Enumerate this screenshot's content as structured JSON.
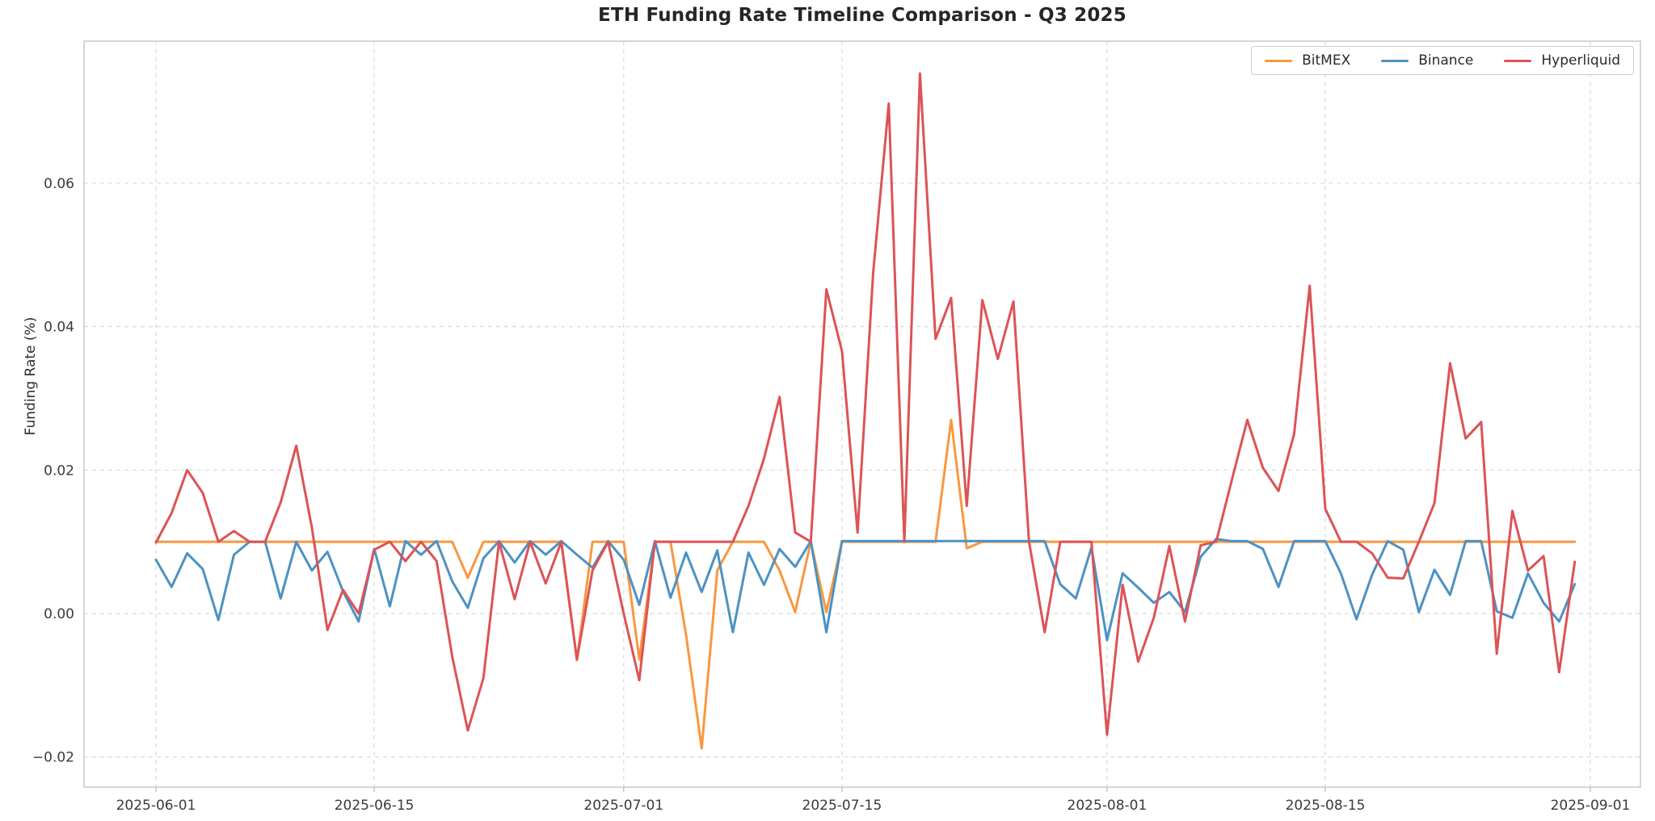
{
  "title": "ETH Funding Rate Timeline Comparison - Q3 2025",
  "axes": {
    "ylabel": "Funding Rate (%)",
    "yticks": [
      {
        "label": "0.06",
        "value": 0.06
      },
      {
        "label": "0.04",
        "value": 0.04
      },
      {
        "label": "0.02",
        "value": 0.02
      },
      {
        "label": "0.00",
        "value": 0.0
      },
      {
        "label": "−0.02",
        "value": -0.02
      }
    ],
    "xticks": [
      {
        "label": "2025-06-01",
        "day": 0
      },
      {
        "label": "2025-06-15",
        "day": 14
      },
      {
        "label": "2025-07-01",
        "day": 30
      },
      {
        "label": "2025-07-15",
        "day": 44
      },
      {
        "label": "2025-08-01",
        "day": 61
      },
      {
        "label": "2025-08-15",
        "day": 75
      },
      {
        "label": "2025-09-01",
        "day": 92
      }
    ],
    "ylim": [
      -0.0242,
      0.0798
    ],
    "x_range_days": 92,
    "grid": "dashed",
    "legend_position": "upper right"
  },
  "legend": {
    "items": [
      {
        "label": "BitMEX",
        "color": "#f9973f"
      },
      {
        "label": "Binance",
        "color": "#4c92c3"
      },
      {
        "label": "Hyperliquid",
        "color": "#dc5356"
      }
    ]
  },
  "chart_data": {
    "type": "line",
    "title": "ETH Funding Rate Timeline Comparison - Q3 2025",
    "xlabel": "",
    "ylabel": "Funding Rate (%)",
    "x_start_date": "2025-06-01",
    "x_dates": [
      "2025-06-01",
      "2025-06-02",
      "2025-06-03",
      "2025-06-04",
      "2025-06-05",
      "2025-06-06",
      "2025-06-07",
      "2025-06-08",
      "2025-06-09",
      "2025-06-10",
      "2025-06-11",
      "2025-06-12",
      "2025-06-13",
      "2025-06-14",
      "2025-06-15",
      "2025-06-16",
      "2025-06-17",
      "2025-06-18",
      "2025-06-19",
      "2025-06-20",
      "2025-06-21",
      "2025-06-22",
      "2025-06-23",
      "2025-06-24",
      "2025-06-25",
      "2025-06-26",
      "2025-06-27",
      "2025-06-28",
      "2025-06-29",
      "2025-06-30",
      "2025-07-01",
      "2025-07-02",
      "2025-07-03",
      "2025-07-04",
      "2025-07-05",
      "2025-07-06",
      "2025-07-07",
      "2025-07-08",
      "2025-07-09",
      "2025-07-10",
      "2025-07-11",
      "2025-07-12",
      "2025-07-13",
      "2025-07-14",
      "2025-07-15",
      "2025-07-16",
      "2025-07-17",
      "2025-07-18",
      "2025-07-19",
      "2025-07-20",
      "2025-07-21",
      "2025-07-22",
      "2025-07-23",
      "2025-07-24",
      "2025-07-25",
      "2025-07-26",
      "2025-07-27",
      "2025-07-28",
      "2025-07-29",
      "2025-07-30",
      "2025-07-31",
      "2025-08-01",
      "2025-08-02",
      "2025-08-03",
      "2025-08-04",
      "2025-08-05",
      "2025-08-06",
      "2025-08-07",
      "2025-08-08",
      "2025-08-09",
      "2025-08-10",
      "2025-08-11",
      "2025-08-12",
      "2025-08-13",
      "2025-08-14",
      "2025-08-15",
      "2025-08-16",
      "2025-08-17",
      "2025-08-18",
      "2025-08-19",
      "2025-08-20",
      "2025-08-21",
      "2025-08-22",
      "2025-08-23",
      "2025-08-24",
      "2025-08-25",
      "2025-08-26",
      "2025-08-27",
      "2025-08-28",
      "2025-08-29",
      "2025-08-30",
      "2025-08-31"
    ],
    "series": [
      {
        "name": "BitMEX",
        "color": "#f9973f",
        "values": [
          0.01,
          0.01,
          0.01,
          0.01,
          0.01,
          0.01,
          0.01,
          0.01,
          0.01,
          0.01,
          0.01,
          0.01,
          0.01,
          0.01,
          0.01,
          0.01,
          0.01,
          0.01,
          0.01,
          0.01,
          0.005,
          0.01,
          0.01,
          0.01,
          0.01,
          0.01,
          0.01,
          -0.0065,
          0.01,
          0.01,
          0.01,
          -0.0064,
          0.01,
          0.01,
          -0.003,
          -0.0188,
          0.006,
          0.01,
          0.01,
          0.01,
          0.006,
          0.0002,
          0.01,
          0.0002,
          0.01,
          0.01,
          0.01,
          0.01,
          0.01,
          0.01,
          0.01,
          0.027,
          0.0091,
          0.01,
          0.01,
          0.01,
          0.01,
          0.01,
          0.01,
          0.01,
          0.01,
          0.01,
          0.01,
          0.01,
          0.01,
          0.01,
          0.01,
          0.01,
          0.01,
          0.01,
          0.01,
          0.01,
          0.01,
          0.01,
          0.01,
          0.01,
          0.01,
          0.01,
          0.01,
          0.01,
          0.01,
          0.01,
          0.01,
          0.01,
          0.01,
          0.01,
          0.01,
          0.01,
          0.01,
          0.01,
          0.01,
          0.01
        ]
      },
      {
        "name": "Binance",
        "color": "#4c92c3",
        "values": [
          0.0075,
          0.0037,
          0.0084,
          0.0062,
          -0.0009,
          0.0082,
          0.01,
          0.01,
          0.0021,
          0.01,
          0.006,
          0.0086,
          0.0031,
          -0.0011,
          0.009,
          0.001,
          0.0101,
          0.0082,
          0.0101,
          0.0045,
          0.0008,
          0.0077,
          0.0101,
          0.0071,
          0.0101,
          0.0082,
          0.0101,
          0.0082,
          0.0064,
          0.0101,
          0.0075,
          0.0012,
          0.0101,
          0.0022,
          0.0085,
          0.003,
          0.0088,
          -0.0026,
          0.0085,
          0.004,
          0.009,
          0.0065,
          0.0101,
          -0.0026,
          0.0101,
          0.0101,
          0.0101,
          0.0101,
          0.0101,
          0.0101,
          0.0101,
          0.0101,
          0.0101,
          0.0101,
          0.0101,
          0.0101,
          0.0101,
          0.0101,
          0.0041,
          0.0021,
          0.0092,
          -0.0037,
          0.0056,
          0.0036,
          0.0015,
          0.003,
          0.0002,
          0.0079,
          0.0104,
          0.0101,
          0.0101,
          0.009,
          0.0037,
          0.0101,
          0.0101,
          0.0101,
          0.0056,
          -0.0008,
          0.0054,
          0.0101,
          0.0089,
          0.0002,
          0.0061,
          0.0026,
          0.0101,
          0.0101,
          0.0003,
          -0.0006,
          0.0056,
          0.0015,
          -0.0011,
          0.0041
        ]
      },
      {
        "name": "Hyperliquid",
        "color": "#dc5356",
        "values": [
          0.0099,
          0.014,
          0.02,
          0.0168,
          0.01,
          0.0115,
          0.01,
          0.01,
          0.0155,
          0.0234,
          0.012,
          -0.0023,
          0.0033,
          0.0,
          0.0089,
          0.01,
          0.0073,
          0.01,
          0.0073,
          -0.006,
          -0.0163,
          -0.009,
          0.01,
          0.002,
          0.01,
          0.0042,
          0.01,
          -0.0064,
          0.006,
          0.01,
          0.0,
          -0.0093,
          0.01,
          0.01,
          0.01,
          0.01,
          0.01,
          0.01,
          0.015,
          0.0216,
          0.0302,
          0.0113,
          0.01,
          0.0452,
          0.0366,
          0.0113,
          0.0475,
          0.0711,
          0.01,
          0.0753,
          0.0383,
          0.044,
          0.015,
          0.0437,
          0.0355,
          0.0435,
          0.01,
          -0.0026,
          0.01,
          0.01,
          0.01,
          -0.0169,
          0.004,
          -0.0067,
          -0.0006,
          0.0094,
          -0.0011,
          0.0095,
          0.01,
          0.0186,
          0.027,
          0.0203,
          0.0171,
          0.025,
          0.0457,
          0.0146,
          0.01,
          0.01,
          0.0084,
          0.005,
          0.0049,
          0.01,
          0.0154,
          0.0349,
          0.0244,
          0.0267,
          -0.0056,
          0.0143,
          0.006,
          0.008,
          -0.0082,
          0.0072
        ]
      }
    ]
  }
}
